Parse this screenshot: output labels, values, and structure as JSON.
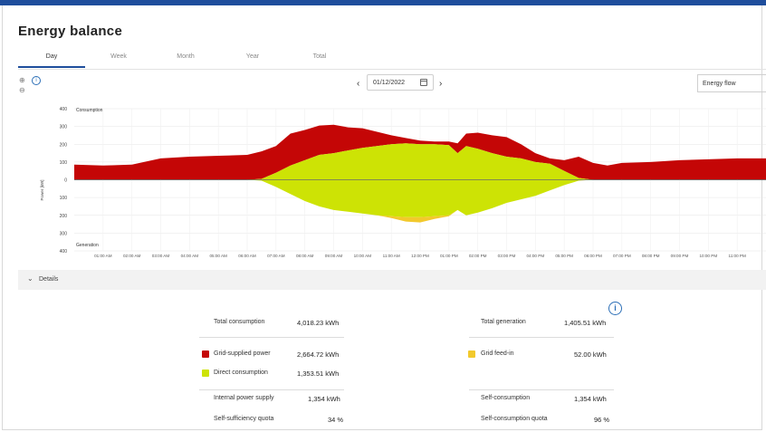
{
  "colors": {
    "accent": "#1f4e9c",
    "grid_supplied": "#c40606",
    "direct": "#cde305",
    "feed_in": "#f2c92c",
    "info": "#2c6fb7"
  },
  "header": {
    "title": "Energy balance"
  },
  "tabs": [
    {
      "label": "Day",
      "active": true
    },
    {
      "label": "Week"
    },
    {
      "label": "Month"
    },
    {
      "label": "Year"
    },
    {
      "label": "Total"
    }
  ],
  "toolbar": {
    "date": "01/12/2022",
    "prev_icon": "chevron-left-icon",
    "next_icon": "chevron-right-icon",
    "view_select": "Energy flow",
    "zoom_icons": [
      "zoom-in-icon",
      "zoom-out-icon"
    ]
  },
  "chart_data": {
    "type": "area",
    "ylabel": "Power [kW]",
    "y_top_label": "Consumption",
    "y_bottom_label": "Generation",
    "ylim": [
      -400,
      400
    ],
    "y_ticks": [
      "400",
      "300",
      "200",
      "100",
      "0",
      "100",
      "200",
      "300",
      "400"
    ],
    "x_ticks": [
      "01:00 AM",
      "02:00 AM",
      "03:00 AM",
      "04:00 AM",
      "05:00 AM",
      "06:00 AM",
      "07:00 AM",
      "08:00 AM",
      "09:00 AM",
      "10:00 AM",
      "11:00 AM",
      "12:00 PM",
      "01:00 PM",
      "02:00 PM",
      "03:00 PM",
      "04:00 PM",
      "05:00 PM",
      "06:00 PM",
      "07:00 PM",
      "08:00 PM",
      "09:00 PM",
      "10:00 PM",
      "11:00 PM"
    ],
    "x_hours": [
      0,
      1,
      2,
      3,
      4,
      5,
      6,
      6.5,
      7,
      7.5,
      8,
      8.5,
      9,
      9.5,
      10,
      10.5,
      11,
      11.5,
      12,
      12.5,
      13,
      13.3,
      13.6,
      14,
      14.5,
      15,
      15.5,
      16,
      16.5,
      17,
      17.5,
      18,
      18.5,
      19,
      20,
      21,
      22,
      23,
      24
    ],
    "series": [
      {
        "key": "grid",
        "values": [
          85,
          80,
          85,
          120,
          130,
          135,
          140,
          155,
          150,
          180,
          170,
          165,
          160,
          130,
          110,
          80,
          50,
          30,
          20,
          15,
          20,
          55,
          70,
          90,
          100,
          110,
          80,
          50,
          30,
          60,
          120,
          95,
          80,
          95,
          100,
          110,
          115,
          120,
          120
        ]
      },
      {
        "key": "direct_consumption",
        "values": [
          0,
          0,
          0,
          0,
          0,
          0,
          0,
          5,
          40,
          80,
          110,
          140,
          150,
          165,
          180,
          190,
          200,
          205,
          200,
          200,
          195,
          150,
          190,
          175,
          150,
          130,
          120,
          100,
          90,
          50,
          10,
          0,
          0,
          0,
          0,
          0,
          0,
          0,
          0
        ]
      },
      {
        "key": "generation",
        "values": [
          0,
          0,
          0,
          0,
          0,
          0,
          0,
          -5,
          -40,
          -80,
          -120,
          -150,
          -170,
          -180,
          -190,
          -200,
          -205,
          -210,
          -210,
          -205,
          -200,
          -170,
          -200,
          -185,
          -160,
          -130,
          -110,
          -90,
          -60,
          -30,
          -5,
          0,
          0,
          0,
          0,
          0,
          0,
          0,
          0
        ]
      },
      {
        "key": "grid_feed_in",
        "values": [
          0,
          0,
          0,
          0,
          0,
          0,
          0,
          0,
          0,
          0,
          0,
          0,
          0,
          0,
          0,
          0,
          -10,
          -25,
          -30,
          -15,
          -5,
          0,
          0,
          0,
          0,
          0,
          0,
          0,
          0,
          0,
          0,
          0,
          0,
          0,
          0,
          0,
          0,
          0,
          0
        ]
      }
    ]
  },
  "details": {
    "label": "Details",
    "total_consumption": {
      "label": "Total consumption",
      "value": "4,018.23 kWh"
    },
    "total_generation": {
      "label": "Total generation",
      "value": "1,405.51 kWh"
    },
    "grid_supplied": {
      "label": "Grid-supplied power",
      "value": "2,664.72 kWh"
    },
    "grid_feed_in": {
      "label": "Grid feed-in",
      "value": "52.00 kWh"
    },
    "direct_consumption": {
      "label": "Direct consumption",
      "value": "1,353.51 kWh"
    },
    "internal_supply": {
      "label": "Internal power supply",
      "value": "1,354 kWh"
    },
    "self_consumption": {
      "label": "Self-consumption",
      "value": "1,354 kWh"
    },
    "self_sufficiency": {
      "label": "Self-sufficiency quota",
      "value": "34 %"
    },
    "self_consumption_quota": {
      "label": "Self-consumption quota",
      "value": "96 %"
    }
  }
}
